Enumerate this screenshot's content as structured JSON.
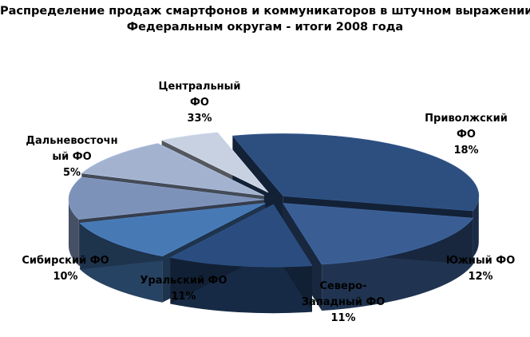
{
  "chart_data": {
    "type": "pie",
    "title_lines": [
      "Распределение продаж смартфонов и коммуникаторов в штучном выражении по",
      "Федеральным округам  - итоги 2008 года"
    ],
    "categories": [
      "Центральный ФО",
      "Приволжский ФО",
      "Южный ФО",
      "Северо-Западный ФО",
      "Уральский ФО",
      "Сибирский ФО",
      "Дальневосточный ФО"
    ],
    "values": [
      33,
      18,
      12,
      11,
      11,
      10,
      5
    ],
    "value_labels": [
      "33%",
      "18%",
      "12%",
      "11%",
      "11%",
      "10%",
      "5%"
    ],
    "label_lines": [
      [
        "Центральный",
        "ФО",
        "33%"
      ],
      [
        "Приволжский",
        "ФО",
        "18%"
      ],
      [
        "Южный ФО",
        "12%"
      ],
      [
        "Северо-",
        "Западный ФО",
        "11%"
      ],
      [
        "Уральский ФО",
        "11%"
      ],
      [
        "Сибирский ФО",
        "10%"
      ],
      [
        "Дальневосточн",
        "ый ФО",
        "5%"
      ]
    ],
    "style": "3d-exploded",
    "legend": "none",
    "colors": [
      "#2d4f80",
      "#3a5e94",
      "#2a4c7e",
      "#4779b4",
      "#7d92b8",
      "#a3b3cf",
      "#c8d1e2"
    ]
  }
}
